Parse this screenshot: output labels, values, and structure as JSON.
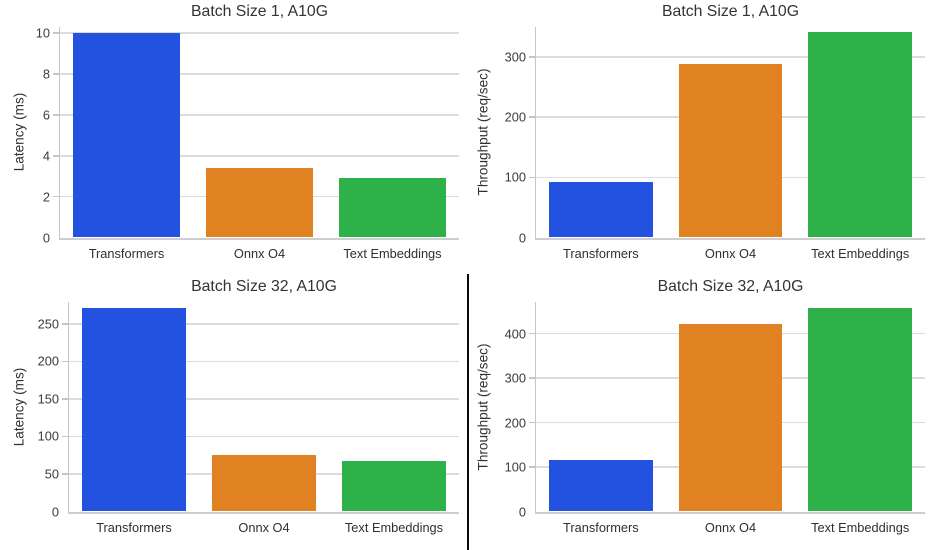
{
  "page": {
    "background": "#ffffff"
  },
  "colors": {
    "bar_palette": [
      "#2351e0",
      "#e08122",
      "#2fb14a"
    ],
    "grid": "#dadce0",
    "spine": "#c3c7cc",
    "baseline": "#ccced1",
    "tick_mark": "#c3c7cc",
    "title_text": "#333333",
    "label_text": "#2f2f2f",
    "tick_text": "#3c3c3c",
    "divider": "#0a0a0a"
  },
  "chart_data": [
    {
      "type": "bar",
      "title": "Batch Size 1, A10G",
      "xlabel": "",
      "ylabel": "Latency (ms)",
      "categories": [
        "Transformers",
        "Onnx O4",
        "Text Embeddings"
      ],
      "values": [
        10.0,
        3.4,
        2.9
      ],
      "yticks": [
        0,
        2,
        4,
        6,
        8,
        10
      ],
      "ylim": [
        0,
        10.3
      ],
      "grid": true,
      "legend": "none",
      "bar_width_fraction": 0.8
    },
    {
      "type": "bar",
      "title": "Batch Size 1, A10G",
      "xlabel": "",
      "ylabel": "Throughput (req/sec)",
      "categories": [
        "Transformers",
        "Onnx O4",
        "Text Embeddings"
      ],
      "values": [
        92,
        288,
        341
      ],
      "yticks": [
        0,
        100,
        200,
        300
      ],
      "ylim": [
        0,
        350
      ],
      "grid": true,
      "legend": "none",
      "bar_width_fraction": 0.8
    },
    {
      "type": "bar",
      "title": "Batch Size 32, A10G",
      "xlabel": "",
      "ylabel": "Latency (ms)",
      "categories": [
        "Transformers",
        "Onnx O4",
        "Text Embeddings"
      ],
      "values": [
        271,
        75,
        67
      ],
      "yticks": [
        0,
        50,
        100,
        150,
        200,
        250
      ],
      "ylim": [
        0,
        279
      ],
      "grid": true,
      "legend": "none",
      "bar_width_fraction": 0.8
    },
    {
      "type": "bar",
      "title": "Batch Size 32, A10G",
      "xlabel": "",
      "ylabel": "Throughput (req/sec)",
      "categories": [
        "Transformers",
        "Onnx O4",
        "Text Embeddings"
      ],
      "values": [
        115,
        421,
        458
      ],
      "yticks": [
        0,
        100,
        200,
        300,
        400
      ],
      "ylim": [
        0,
        471
      ],
      "grid": true,
      "legend": "none",
      "bar_width_fraction": 0.8
    }
  ]
}
